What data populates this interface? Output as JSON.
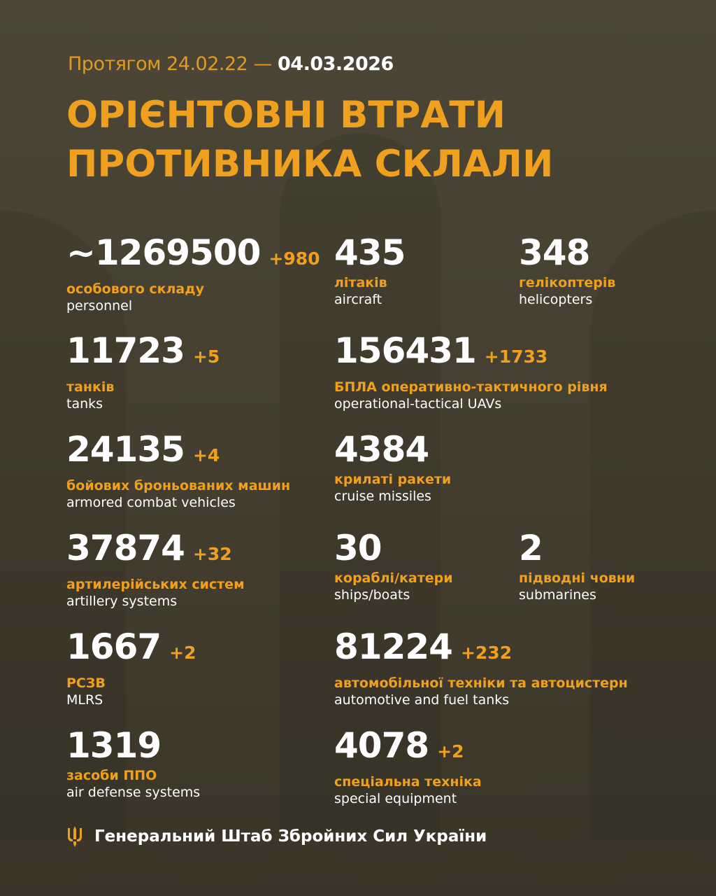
{
  "header": {
    "period_prefix": "Протягом 24.02.22 —",
    "period_end": "04.03.2026",
    "title_line1": "ОРІЄНТОВНІ ВТРАТИ",
    "title_line2": "ПРОТИВНИКА СКЛАЛИ"
  },
  "stats": [
    {
      "value": "~1269500",
      "delta": "+980",
      "ua": "особового складу",
      "en": "personnel"
    },
    {
      "value": "435",
      "delta": "",
      "ua": "літаків",
      "en": "aircraft"
    },
    {
      "value": "348",
      "delta": "",
      "ua": "гелікоптерів",
      "en": "helicopters"
    },
    {
      "value": "11723",
      "delta": "+5",
      "ua": "танків",
      "en": "tanks"
    },
    {
      "value": "156431",
      "delta": "+1733",
      "ua": "БПЛА оперативно-тактичного рівня",
      "en": "operational-tactical UAVs"
    },
    {
      "value": "24135",
      "delta": "+4",
      "ua": "бойових броньованих машин",
      "en": "armored combat vehicles"
    },
    {
      "value": "4384",
      "delta": "",
      "ua": "крилаті ракети",
      "en": "cruise missiles"
    },
    {
      "value": "37874",
      "delta": "+32",
      "ua": "артилерійських систем",
      "en": "artillery systems"
    },
    {
      "value": "30",
      "delta": "",
      "ua": "кораблі/катери",
      "en": "ships/boats"
    },
    {
      "value": "2",
      "delta": "",
      "ua": "підводні човни",
      "en": "submarines"
    },
    {
      "value": "1667",
      "delta": "+2",
      "ua": "РСЗВ",
      "en": "MLRS"
    },
    {
      "value": "81224",
      "delta": "+232",
      "ua": "автомобільної техніки та автоцистерн",
      "en": "automotive and fuel tanks"
    },
    {
      "value": "1319",
      "delta": "",
      "ua": "засоби ППО",
      "en": "air defense systems"
    },
    {
      "value": "4078",
      "delta": "+2",
      "ua": "спеціальна техніка",
      "en": "special equipment"
    }
  ],
  "footer": {
    "text": "Генеральний Штаб Збройних Сил України",
    "icon": "trident-icon"
  },
  "colors": {
    "accent": "#f0a01f",
    "background": "#47422f",
    "text": "#ffffff"
  }
}
